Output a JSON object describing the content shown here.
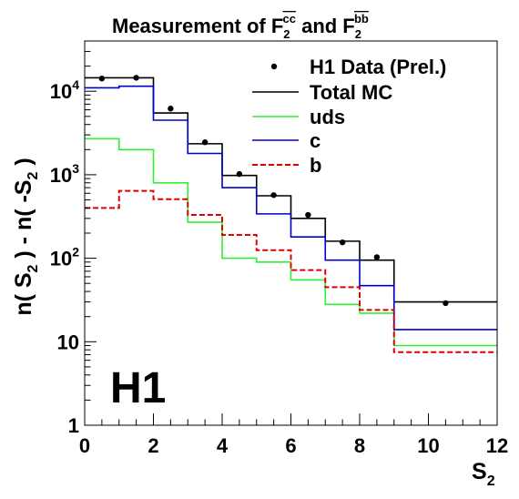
{
  "chart_data": {
    "type": "histogram",
    "title": {
      "prefix": "Measurement of F",
      "sub1": "2",
      "sup1": "cc",
      "middle": " and F",
      "sub2": "2",
      "sup2": "bb"
    },
    "xlabel": {
      "main": "S",
      "sub": "2"
    },
    "ylabel": {
      "p1": "n( S",
      "s1": "2",
      "p2": " ) - n( -S",
      "s2": "2",
      "p3": " )"
    },
    "x_range": [
      0,
      12
    ],
    "y_range": [
      1,
      40000
    ],
    "y_scale": "log",
    "grid": false,
    "legend_position": "top-right",
    "x_ticks": [
      "0",
      "2",
      "4",
      "6",
      "8",
      "10",
      "12"
    ],
    "y_ticks": [
      {
        "value": 1,
        "label": "1"
      },
      {
        "value": 10,
        "label": "10"
      },
      {
        "value": 100,
        "base": "10",
        "exp": "2"
      },
      {
        "value": 1000,
        "base": "10",
        "exp": "3"
      },
      {
        "value": 10000,
        "base": "10",
        "exp": "4"
      }
    ],
    "bin_edges": [
      0,
      1,
      2,
      3,
      4,
      5,
      6,
      7,
      8,
      9,
      12
    ],
    "series": [
      {
        "name": "H1 Data (Prel.)",
        "kind": "points",
        "color": "#000000",
        "x": [
          0.5,
          1.5,
          2.5,
          3.5,
          4.5,
          5.5,
          6.5,
          7.5,
          8.5,
          10.5
        ],
        "values": [
          14200,
          14500,
          6200,
          2450,
          1020,
          570,
          330,
          155,
          103,
          29
        ]
      },
      {
        "name": "Total MC",
        "kind": "step",
        "color": "#000000",
        "values": [
          14500,
          14500,
          5500,
          2350,
          980,
          560,
          300,
          160,
          95,
          30
        ]
      },
      {
        "name": "uds",
        "kind": "step",
        "color": "#33ee33",
        "values": [
          2700,
          2000,
          800,
          270,
          100,
          90,
          55,
          28,
          22,
          9
        ]
      },
      {
        "name": "c",
        "kind": "step",
        "color": "#0000cc",
        "values": [
          11000,
          11500,
          4500,
          1800,
          700,
          340,
          180,
          95,
          47,
          14
        ]
      },
      {
        "name": "b",
        "kind": "step-dashed",
        "color": "#dd0000",
        "values": [
          400,
          640,
          510,
          330,
          190,
          125,
          72,
          45,
          24,
          7.5
        ]
      }
    ],
    "annotations": [
      {
        "text": "H1"
      }
    ]
  }
}
